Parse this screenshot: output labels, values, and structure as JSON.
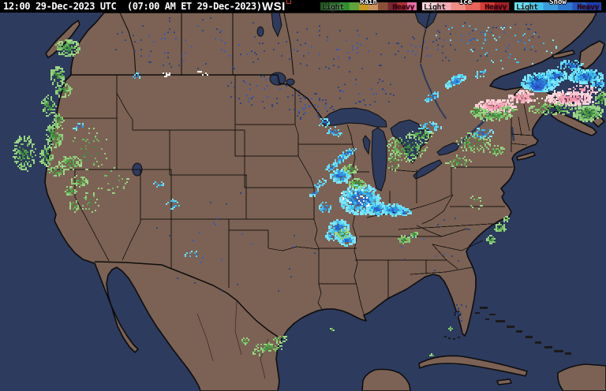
{
  "header": {
    "timestamp": "12:00 29-Dec-2023 UTC  (07:00 AM ET 29-Dec-2023)",
    "logo": "WSI"
  },
  "legend": {
    "groups": [
      {
        "label": "Rain",
        "light": "Light",
        "heavy": "Heavy",
        "colors": [
          "#175217",
          "#1f6b1f",
          "#2f8c2f",
          "#5ea33c",
          "#c7991f",
          "#c9925f",
          "#8a5138",
          "#7c2430",
          "#b23338",
          "#ef6fa5"
        ]
      },
      {
        "label": "Ice",
        "light": "Light",
        "heavy": "Heavy",
        "colors": [
          "#f8d2d8",
          "#f3acb6",
          "#ee8d86",
          "#e5655b",
          "#d53c36",
          "#a32124"
        ]
      },
      {
        "label": "Snow",
        "light": "Light",
        "heavy": "Heavy",
        "colors": [
          "#62e1f4",
          "#3fc3ec",
          "#3b9cdc",
          "#2f78d0",
          "#2856bc",
          "#1d3fae"
        ]
      }
    ]
  },
  "theme": {
    "topbar": "#000000",
    "topbar-text": "#ffffff",
    "logo-accent": "#c43b2b",
    "ocean": "#2d3b5e",
    "land": "#7c6254",
    "border": "#0d0d0d",
    "islet": "#1a1a1a"
  },
  "radar": {
    "note": "blob fields: [cx, cy, rx, ry, count, pixel, palette, rotationDeg?]",
    "palettes": {
      "rain": [
        "#3c8c3c",
        "#58a54c",
        "#74bd62",
        "#8bcc77",
        "#9ed687"
      ],
      "snow": [
        "#2668cc",
        "#2f95e2",
        "#3fc0ee",
        "#5cd8f5",
        "#7de6fa"
      ],
      "snowheavy": [
        "#2450c0",
        "#2c6cd8"
      ],
      "ice": [
        "#ee8fa8",
        "#f4a7b7",
        "#f8c0cb",
        "#fbd5db"
      ],
      "white": [
        "#efefe8",
        "#fdfdf8"
      ],
      "lakes": [
        "#3a5ab0",
        "#2e4583"
      ]
    },
    "blobs": [
      [
        85,
        60,
        16,
        11,
        150,
        2,
        "rain"
      ],
      [
        72,
        96,
        10,
        13,
        80,
        2,
        "rain"
      ],
      [
        79,
        113,
        11,
        9,
        70,
        2,
        "rain"
      ],
      [
        61,
        133,
        9,
        13,
        70,
        2,
        "rain"
      ],
      [
        74,
        151,
        7,
        9,
        40,
        2,
        "rain"
      ],
      [
        68,
        171,
        11,
        17,
        120,
        2,
        "rain"
      ],
      [
        58,
        197,
        9,
        13,
        80,
        2,
        "rain"
      ],
      [
        88,
        206,
        15,
        9,
        80,
        2,
        "rain"
      ],
      [
        71,
        216,
        11,
        7,
        50,
        2,
        "rain"
      ],
      [
        30,
        193,
        14,
        23,
        150,
        2,
        "rain"
      ],
      [
        100,
        229,
        11,
        7,
        50,
        2,
        "rain"
      ],
      [
        89,
        241,
        7,
        7,
        30,
        2,
        "rain"
      ],
      [
        93,
        260,
        6,
        9,
        25,
        2,
        "rain"
      ],
      [
        113,
        256,
        12,
        14,
        28,
        2,
        "rain"
      ],
      [
        112,
        190,
        26,
        30,
        45,
        2,
        "rain"
      ],
      [
        140,
        228,
        24,
        16,
        22,
        2,
        "rain"
      ],
      [
        100,
        160,
        8,
        5,
        15,
        2,
        "snow"
      ],
      [
        455,
        252,
        25,
        19,
        400,
        3,
        "snow"
      ],
      [
        478,
        264,
        14,
        8,
        110,
        3,
        "snow"
      ],
      [
        497,
        265,
        15,
        7,
        110,
        3,
        "snow"
      ],
      [
        512,
        268,
        8,
        5,
        40,
        2,
        "snow"
      ],
      [
        428,
        288,
        13,
        11,
        120,
        3,
        "snow"
      ],
      [
        438,
        303,
        11,
        7,
        70,
        3,
        "snow"
      ],
      [
        420,
        298,
        8,
        6,
        40,
        2,
        "snow"
      ],
      [
        411,
        262,
        8,
        7,
        35,
        2,
        "snow"
      ],
      [
        430,
        222,
        13,
        9,
        100,
        3,
        "snow"
      ],
      [
        443,
        214,
        9,
        6,
        50,
        2,
        "rain"
      ],
      [
        452,
        232,
        11,
        7,
        70,
        2,
        "rain"
      ],
      [
        433,
        296,
        9,
        6,
        45,
        2,
        "rain"
      ],
      [
        448,
        247,
        16,
        12,
        14,
        2,
        "white"
      ],
      [
        465,
        255,
        10,
        6,
        8,
        2,
        "white"
      ],
      [
        432,
        200,
        13,
        4,
        55,
        2,
        "snow",
        -35
      ],
      [
        419,
        211,
        9,
        4,
        35,
        2,
        "snow",
        -35
      ],
      [
        440,
        193,
        11,
        4,
        45,
        2,
        "snow",
        -30
      ],
      [
        405,
        232,
        9,
        4,
        28,
        2,
        "snow",
        -30
      ],
      [
        398,
        244,
        7,
        3,
        18,
        2,
        "snow",
        -30
      ],
      [
        424,
        166,
        10,
        7,
        30,
        2,
        "snow"
      ],
      [
        410,
        155,
        8,
        5,
        18,
        2,
        "snow"
      ],
      [
        515,
        186,
        26,
        18,
        150,
        2,
        "rain"
      ],
      [
        532,
        170,
        16,
        8,
        60,
        2,
        "rain"
      ],
      [
        544,
        160,
        14,
        6,
        45,
        2,
        "snow"
      ],
      [
        600,
        180,
        22,
        13,
        100,
        2,
        "rain"
      ],
      [
        610,
        168,
        16,
        7,
        45,
        2,
        "snow"
      ],
      [
        580,
        204,
        16,
        8,
        40,
        2,
        "rain"
      ],
      [
        628,
        190,
        10,
        6,
        30,
        2,
        "rain"
      ],
      [
        498,
        205,
        8,
        14,
        30,
        2,
        "rain"
      ],
      [
        576,
        101,
        15,
        5,
        70,
        3,
        "snow",
        -28
      ],
      [
        546,
        122,
        11,
        4,
        45,
        2,
        "snow",
        -28
      ],
      [
        608,
        93,
        8,
        4,
        25,
        2,
        "snow",
        -28
      ],
      [
        650,
        60,
        55,
        28,
        40,
        2,
        "snow"
      ],
      [
        590,
        45,
        40,
        20,
        22,
        2,
        "snow"
      ],
      [
        627,
        133,
        25,
        8,
        200,
        3,
        "ice"
      ],
      [
        606,
        141,
        12,
        6,
        60,
        2,
        "rain"
      ],
      [
        624,
        146,
        24,
        6,
        110,
        2,
        "rain"
      ],
      [
        643,
        139,
        12,
        5,
        50,
        2,
        "rain"
      ],
      [
        660,
        122,
        17,
        8,
        80,
        3,
        "ice"
      ],
      [
        683,
        103,
        23,
        12,
        280,
        3,
        "snow"
      ],
      [
        680,
        108,
        8,
        5,
        60,
        3,
        "snowheavy"
      ],
      [
        703,
        95,
        14,
        8,
        110,
        3,
        "snow"
      ],
      [
        721,
        124,
        31,
        9,
        240,
        3,
        "ice"
      ],
      [
        700,
        137,
        32,
        8,
        110,
        2,
        "rain"
      ],
      [
        744,
        142,
        19,
        10,
        150,
        3,
        "rain"
      ],
      [
        760,
        125,
        9,
        11,
        60,
        2,
        "rain"
      ],
      [
        741,
        96,
        22,
        9,
        180,
        3,
        "snow"
      ],
      [
        722,
        82,
        18,
        7,
        60,
        2,
        "snow"
      ],
      [
        757,
        106,
        10,
        6,
        50,
        2,
        "snow"
      ],
      [
        738,
        114,
        20,
        6,
        60,
        2,
        "ice"
      ],
      [
        700,
        120,
        25,
        8,
        12,
        2,
        "white"
      ],
      [
        511,
        303,
        8,
        5,
        40,
        2,
        "rain"
      ],
      [
        524,
        296,
        5,
        4,
        20,
        2,
        "rain"
      ],
      [
        633,
        288,
        7,
        6,
        40,
        2,
        "rain"
      ],
      [
        622,
        303,
        6,
        5,
        28,
        2,
        "rain"
      ],
      [
        641,
        277,
        4,
        3,
        14,
        2,
        "rain"
      ],
      [
        600,
        256,
        12,
        8,
        14,
        2,
        "rain"
      ],
      [
        340,
        440,
        19,
        6,
        70,
        2,
        "rain"
      ],
      [
        354,
        429,
        9,
        5,
        35,
        2,
        "rain"
      ],
      [
        326,
        446,
        7,
        4,
        20,
        2,
        "rain"
      ],
      [
        310,
        432,
        6,
        4,
        15,
        2,
        "rain"
      ],
      [
        571,
        416,
        3,
        2,
        8,
        2,
        "rain"
      ],
      [
        546,
        449,
        3,
        2,
        8,
        2,
        "rain"
      ],
      [
        420,
        417,
        3,
        2,
        6,
        2,
        "rain"
      ],
      [
        218,
        258,
        9,
        7,
        18,
        2,
        "snow"
      ],
      [
        200,
        232,
        7,
        5,
        12,
        2,
        "snow"
      ],
      [
        243,
        322,
        10,
        5,
        10,
        2,
        "snow"
      ],
      [
        208,
        93,
        7,
        3,
        10,
        2,
        "white"
      ],
      [
        255,
        92,
        8,
        3,
        8,
        2,
        "white"
      ],
      [
        172,
        96,
        5,
        4,
        12,
        2,
        "snow"
      ],
      [
        250,
        55,
        110,
        35,
        70,
        2,
        "lakes"
      ],
      [
        430,
        60,
        80,
        30,
        55,
        2,
        "lakes"
      ],
      [
        330,
        115,
        55,
        22,
        35,
        2,
        "lakes"
      ],
      [
        620,
        50,
        75,
        28,
        40,
        2,
        "lakes"
      ],
      [
        395,
        135,
        30,
        18,
        40,
        2,
        "lakes"
      ],
      [
        460,
        115,
        40,
        20,
        30,
        2,
        "lakes"
      ],
      [
        540,
        60,
        40,
        25,
        25,
        2,
        "lakes"
      ],
      [
        585,
        395,
        8,
        14,
        10,
        2,
        "lakes"
      ],
      [
        300,
        300,
        120,
        80,
        25,
        2,
        "lakes"
      ],
      [
        550,
        310,
        60,
        40,
        15,
        2,
        "lakes"
      ]
    ]
  }
}
